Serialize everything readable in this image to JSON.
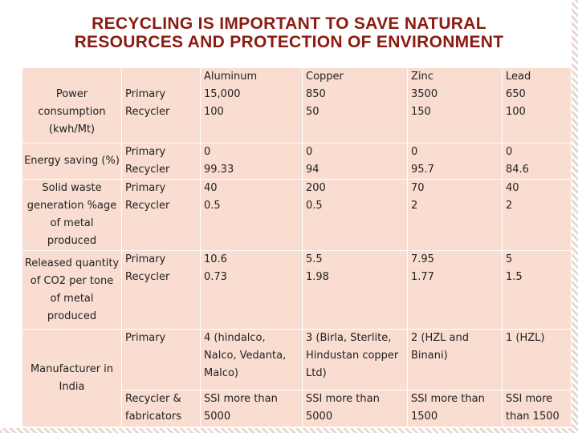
{
  "title": {
    "line1": "RECYCLING IS IMPORTANT TO SAVE NATURAL",
    "line2": "RESOURCES AND PROTECTION OF ENVIRONMENT"
  },
  "table": {
    "metals": [
      "Aluminum",
      "Copper",
      "Zinc",
      "Lead"
    ],
    "rows": {
      "power": {
        "label": "Power consumption (kwh/Mt)",
        "types": [
          "Primary",
          "Recycler"
        ],
        "values": [
          [
            "15,000",
            "100"
          ],
          [
            "850",
            "50"
          ],
          [
            "3500",
            "150"
          ],
          [
            "650",
            "100"
          ]
        ]
      },
      "energy": {
        "label": "Energy saving (%)",
        "types": [
          "Primary",
          "Recycler"
        ],
        "values": [
          [
            "0",
            "99.33"
          ],
          [
            "0",
            "94"
          ],
          [
            "0",
            "95.7"
          ],
          [
            "0",
            "84.6"
          ]
        ]
      },
      "waste": {
        "label": "Solid waste generation %age of metal produced",
        "types": [
          "Primary",
          "Recycler"
        ],
        "values": [
          [
            "40",
            "0.5"
          ],
          [
            "200",
            "0.5"
          ],
          [
            "70",
            "2"
          ],
          [
            "40",
            "2"
          ]
        ]
      },
      "co2": {
        "label": "Released quantity of CO2 per tone of metal produced",
        "types": [
          "Primary",
          "Recycler"
        ],
        "values": [
          [
            "10.6",
            "0.73"
          ],
          [
            "5.5",
            "1.98"
          ],
          [
            "7.95",
            "1.77"
          ],
          [
            "5",
            "1.5"
          ]
        ]
      },
      "manufacturer": {
        "label": "Manufacturer in India",
        "primary_label": "Primary",
        "recycler_label": "Recycler & fabricators",
        "primary": [
          "4 (hindalco, Nalco, Vedanta, Malco)",
          "3 (Birla, Sterlite, Hindustan copper Ltd)",
          "2 (HZL and Binani)",
          "1 (HZL)"
        ],
        "recycler": [
          "SSI more than 5000",
          "SSI more than 5000",
          "SSI more than 1500",
          "SSI more than 1500"
        ]
      }
    }
  }
}
